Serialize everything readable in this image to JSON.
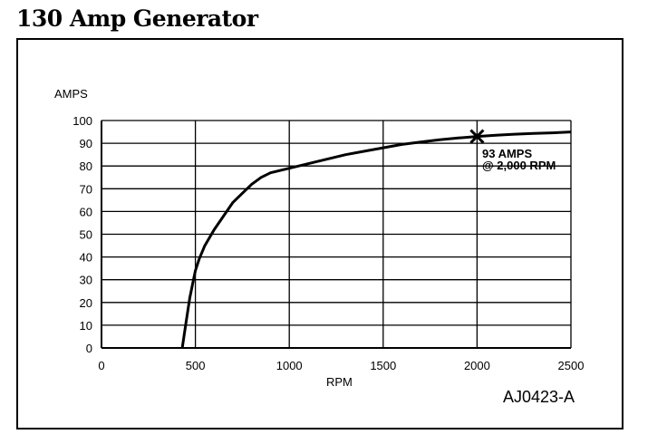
{
  "page": {
    "title": "130 Amp Generator",
    "figure_code": "AJ0423-A"
  },
  "chart_data": {
    "type": "line",
    "title": "130 Amp Generator",
    "xlabel": "RPM",
    "ylabel": "AMPS",
    "xlim": [
      0,
      2500
    ],
    "ylim": [
      0,
      100
    ],
    "x_ticks": [
      0,
      500,
      1000,
      1500,
      2000,
      2500
    ],
    "y_ticks": [
      0,
      10,
      20,
      30,
      40,
      50,
      60,
      70,
      80,
      90,
      100
    ],
    "grid": true,
    "series": [
      {
        "x": [
          430,
          450,
          470,
          490,
          500,
          520,
          550,
          600,
          650,
          700,
          750,
          800,
          850,
          900,
          950,
          1000,
          1100,
          1200,
          1300,
          1400,
          1500,
          1600,
          1700,
          1800,
          1900,
          2000,
          2100,
          2200,
          2300,
          2400,
          2500
        ],
        "y": [
          0,
          11,
          22,
          30,
          34,
          39,
          45,
          52,
          58,
          64,
          68,
          72,
          75,
          77,
          78,
          79,
          81,
          83,
          85,
          86.5,
          88,
          89.5,
          90.5,
          91.5,
          92.3,
          93,
          93.5,
          94,
          94.3,
          94.6,
          95
        ]
      }
    ],
    "marker": {
      "x": 2000,
      "y": 93,
      "symbol": "x"
    },
    "annotations": [
      "93 AMPS",
      "@ 2,000 RPM"
    ]
  }
}
